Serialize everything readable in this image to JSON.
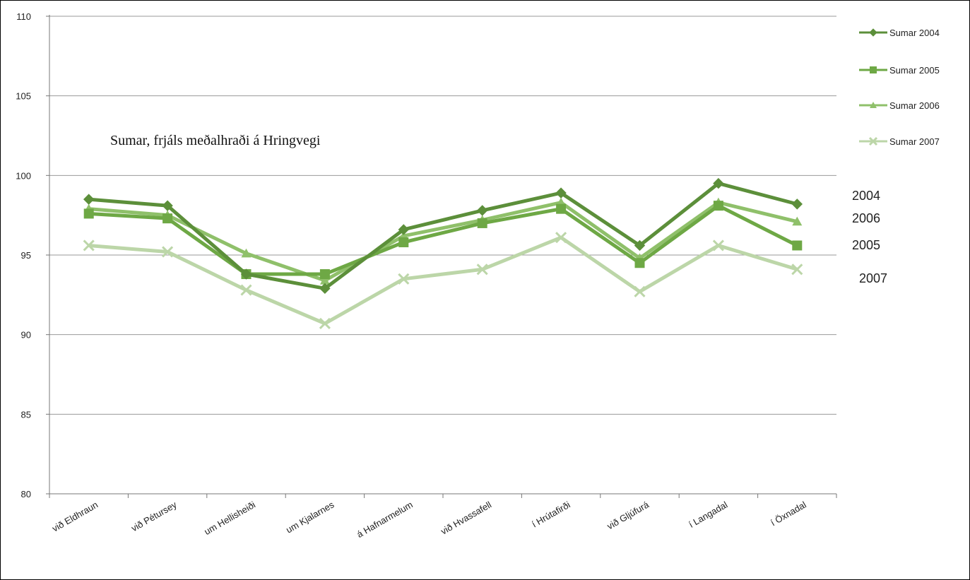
{
  "chart_data": {
    "type": "line",
    "title": "Sumar, frjáls meðalhraði á Hringvegi",
    "xlabel": "",
    "ylabel": "",
    "ylim": [
      80,
      110
    ],
    "yticks": [
      80,
      85,
      90,
      95,
      100,
      105,
      110
    ],
    "grid": true,
    "legend": "right",
    "categories": [
      "við Eldhraun",
      "við Pétursey",
      "um Hellisheiði",
      "um Kjalarnes",
      "á Hafnarmelum",
      "við Hvassafell",
      "í Hrútafirði",
      "við Gljúfurá",
      "í Langadal",
      "í Öxnadal"
    ],
    "series": [
      {
        "name": "Sumar 2004",
        "end_label": "2004",
        "color": "#5c8f3a",
        "marker": "diamond",
        "values": [
          98.5,
          98.1,
          93.8,
          92.9,
          96.6,
          97.8,
          98.9,
          95.6,
          99.5,
          98.2
        ]
      },
      {
        "name": "Sumar 2005",
        "end_label": "2005",
        "color": "#6ea845",
        "marker": "square",
        "values": [
          97.6,
          97.3,
          93.8,
          93.8,
          95.8,
          97.0,
          97.9,
          94.5,
          98.1,
          95.6
        ]
      },
      {
        "name": "Sumar 2006",
        "end_label": "2006",
        "color": "#8fc06a",
        "marker": "triangle",
        "values": [
          97.9,
          97.5,
          95.1,
          93.4,
          96.2,
          97.2,
          98.3,
          94.8,
          98.3,
          97.1
        ]
      },
      {
        "name": "Sumar 2007",
        "end_label": "2007",
        "color": "#bcd6a8",
        "marker": "x",
        "values": [
          95.6,
          95.2,
          92.8,
          90.7,
          93.5,
          94.1,
          96.1,
          92.7,
          95.6,
          94.1
        ]
      }
    ]
  }
}
